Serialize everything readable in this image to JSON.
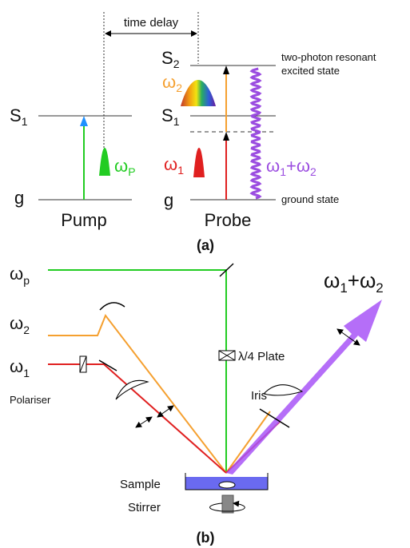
{
  "panel_a": {
    "time_delay": "time delay",
    "pump": {
      "label": "Pump",
      "S1": {
        "main": "S",
        "sub": "1"
      },
      "g": "g",
      "pulse": {
        "main": "ω",
        "sub": "P"
      }
    },
    "probe": {
      "label": "Probe",
      "S2": {
        "main": "S",
        "sub": "2"
      },
      "S1": {
        "main": "S",
        "sub": "1"
      },
      "g": "g",
      "omega2": {
        "main": "ω",
        "sub": "2"
      },
      "omega1": {
        "main": "ω",
        "sub": "1"
      },
      "sum": {
        "a": "ω",
        "a_sub": "1",
        "plus": "+",
        "b": "ω",
        "b_sub": "2"
      },
      "excited_state": [
        "two-photon resonant",
        "excited state"
      ],
      "ground_state": "ground state"
    },
    "caption": "(a)"
  },
  "panel_b": {
    "omega_p": {
      "main": "ω",
      "sub": "p"
    },
    "omega2": {
      "main": "ω",
      "sub": "2"
    },
    "omega1": {
      "main": "ω",
      "sub": "1"
    },
    "plate": "λ/4 Plate",
    "polariser": "Polariser",
    "iris": "Iris",
    "output": {
      "a": "ω",
      "a_sub": "1",
      "plus": "+",
      "b": "ω",
      "b_sub": "2"
    },
    "sample": "Sample",
    "stirrer": "Stirrer",
    "caption": "(b)"
  }
}
